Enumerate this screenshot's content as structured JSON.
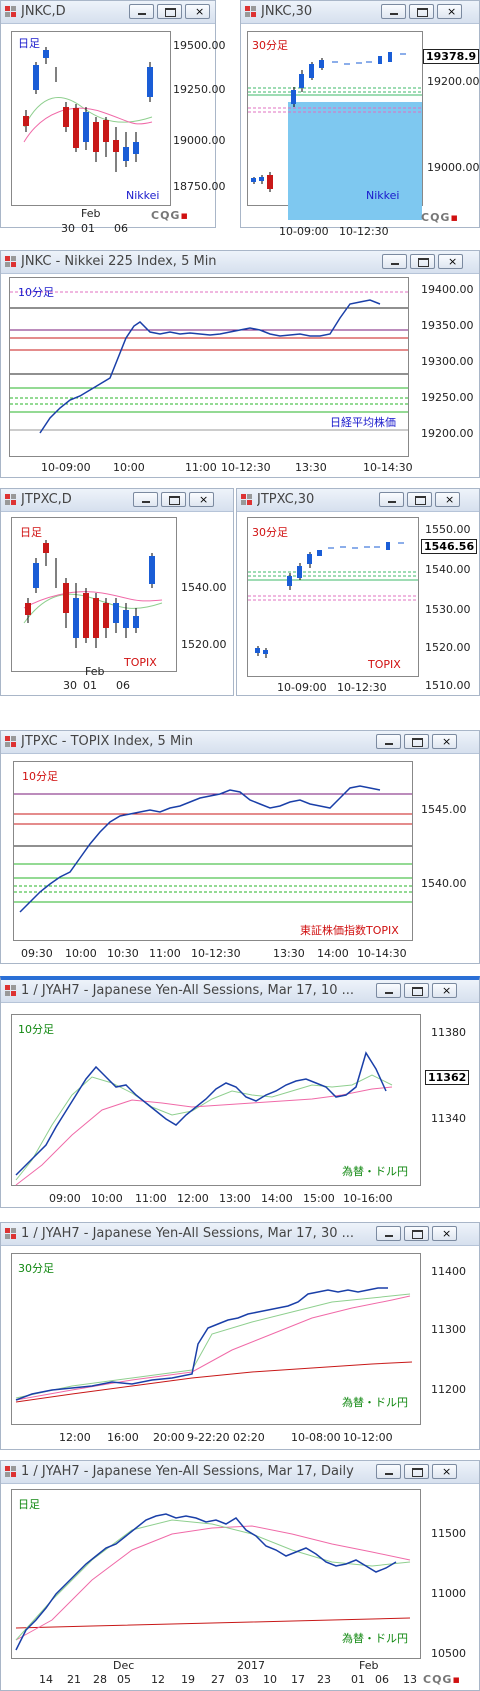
{
  "colors": {
    "up": "#1a5dd6",
    "down": "#c81818",
    "ma_pink": "#f06aa8",
    "ma_green": "#8fcf8f",
    "bg": "#ffffff"
  },
  "windows": [
    {
      "id": "w1",
      "title": "JNKC,D",
      "period": "日足",
      "period_color": "red",
      "yticks": [
        "19500.00",
        "19250.00",
        "19000.00",
        "18750.00"
      ],
      "xticks": [
        "30",
        "01",
        "06"
      ],
      "month": "Feb",
      "index_label": "Nikkei",
      "logo": "CQG"
    },
    {
      "id": "w2",
      "title": "JNKC,30",
      "period": "30分足",
      "period_color": "red",
      "yticks": [
        "19200.00",
        "19000.00"
      ],
      "last_price": "19378.9",
      "xticks": [
        "10-09:00",
        "10-12:30"
      ],
      "index_label": "Nikkei",
      "logo": "CQG"
    },
    {
      "id": "w3",
      "title": "JNKC - Nikkei 225 Index, 5 Min",
      "period": "10分足",
      "period_color": "blue",
      "yticks": [
        "19400.00",
        "19350.00",
        "19300.00",
        "19250.00",
        "19200.00"
      ],
      "xticks": [
        "10-09:00",
        "10:00",
        "11:00",
        "10-12:30",
        "13:30",
        "10-14:30"
      ],
      "index_label": "日経平均株価"
    },
    {
      "id": "w4",
      "title": "JTPXC,D",
      "period": "日足",
      "period_color": "red",
      "yticks": [
        "1540.00",
        "1520.00"
      ],
      "xticks": [
        "30",
        "01",
        "06"
      ],
      "month": "Feb",
      "index_label": "TOPIX"
    },
    {
      "id": "w5",
      "title": "JTPXC,30",
      "period": "30分足",
      "period_color": "red",
      "yticks": [
        "1550.00",
        "1540.00",
        "1530.00",
        "1520.00",
        "1510.00"
      ],
      "last_price": "1546.56",
      "xticks": [
        "10-09:00",
        "10-12:30"
      ],
      "index_label": "TOPIX"
    },
    {
      "id": "w6",
      "title": "JTPXC - TOPIX Index, 5 Min",
      "period": "10分足",
      "period_color": "red",
      "yticks": [
        "1545.00",
        "1540.00"
      ],
      "xticks": [
        "09:30",
        "10:00",
        "10:30",
        "11:00",
        "10-12:30",
        "13:30",
        "14:00",
        "10-14:30"
      ],
      "index_label": "東証株価指数TOPIX"
    },
    {
      "id": "w7",
      "title": "1 / JYAH7 - Japanese Yen-All Sessions, Mar 17, 10 ...",
      "period": "10分足",
      "period_color": "green",
      "yticks": [
        "11380",
        "11340"
      ],
      "last_price": "11362",
      "xticks": [
        "09:00",
        "10:00",
        "11:00",
        "12:00",
        "13:00",
        "14:00",
        "15:00",
        "10-16:00"
      ],
      "index_label": "為替・ドル円"
    },
    {
      "id": "w8",
      "title": "1 / JYAH7 - Japanese Yen-All Sessions, Mar 17, 30 ...",
      "period": "30分足",
      "period_color": "green",
      "yticks": [
        "11400",
        "11300",
        "11200"
      ],
      "xticks": [
        "12:00",
        "16:00",
        "20:00",
        "9-22:20",
        "02:20",
        "10-08:00",
        "10-12:00"
      ],
      "index_label": "為替・ドル円"
    },
    {
      "id": "w9",
      "title": "1 / JYAH7 - Japanese Yen-All Sessions, Mar 17, Daily",
      "period": "日足",
      "period_color": "green",
      "yticks": [
        "11500",
        "11000",
        "10500"
      ],
      "xticks": [
        "14",
        "21",
        "28",
        "05",
        "12",
        "19",
        "27",
        "03",
        "10",
        "17",
        "23",
        "01",
        "06",
        "13"
      ],
      "months": [
        "Dec",
        "2017",
        "Feb"
      ],
      "index_label": "為替・ドル円",
      "logo": "CQG"
    }
  ]
}
